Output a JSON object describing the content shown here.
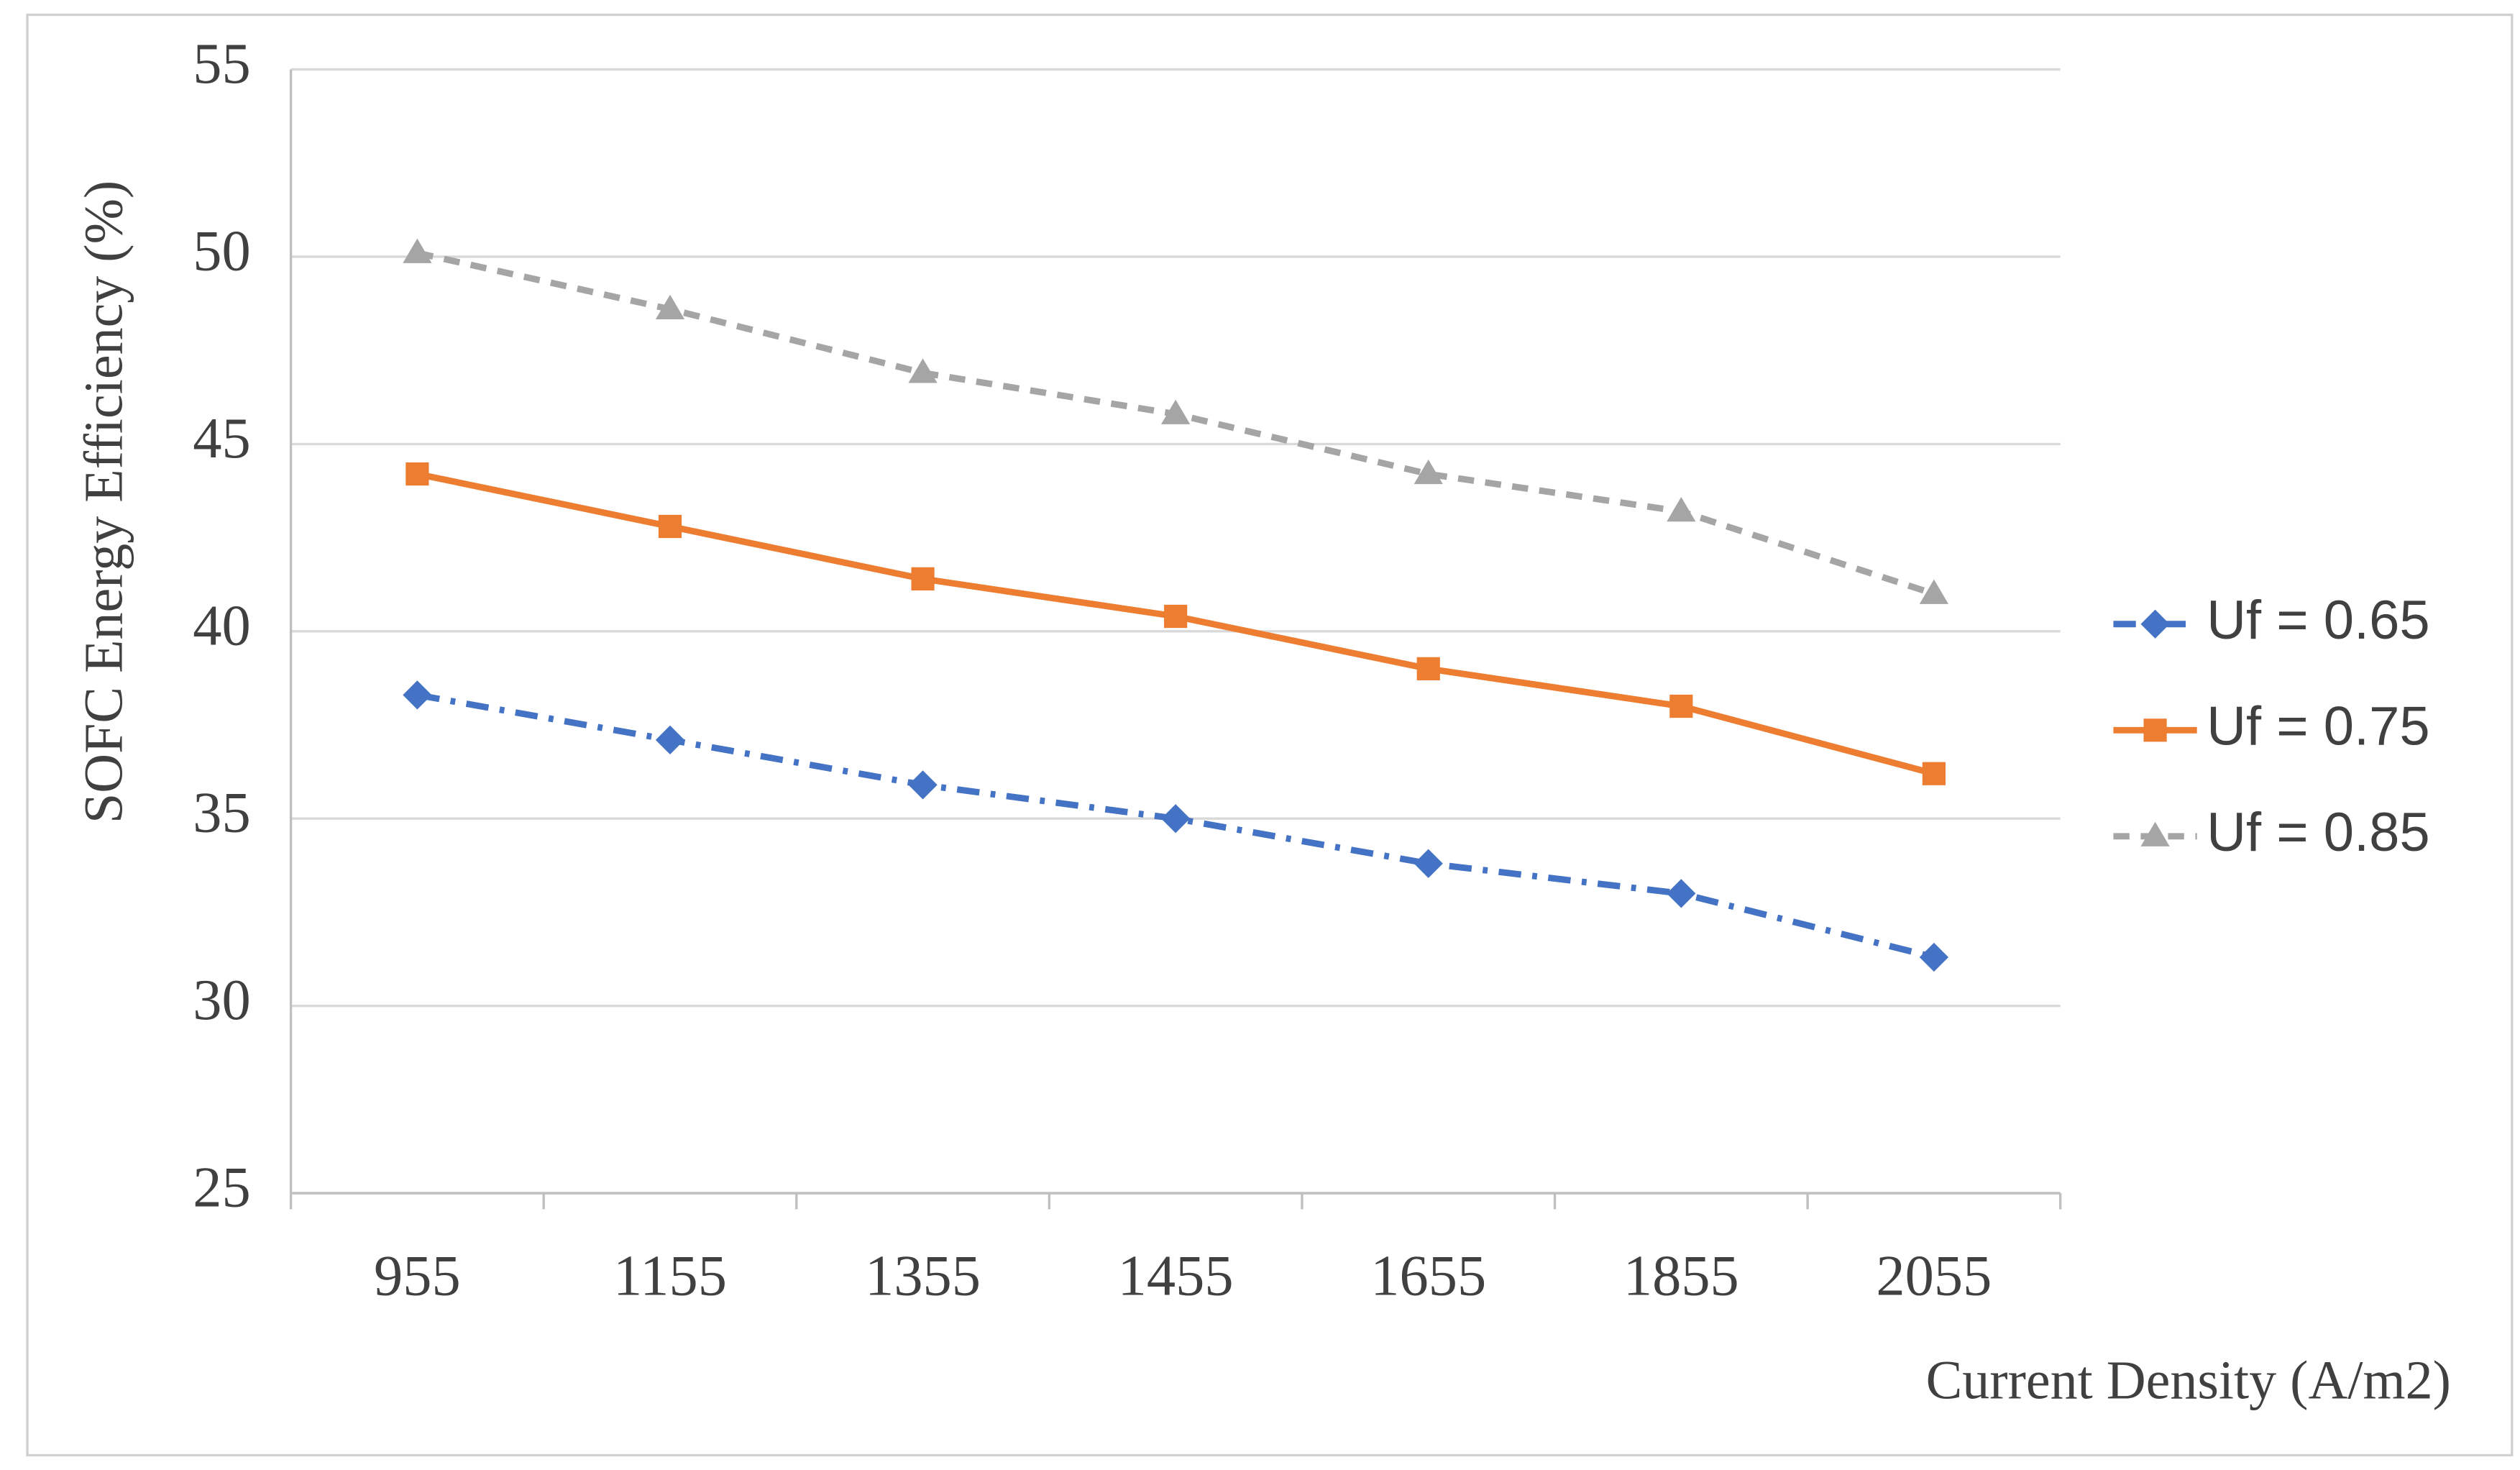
{
  "chart_data": {
    "type": "line",
    "y_label": "SOFC Energy Efficiency (%)",
    "x_label": "Current Density (A/m2)",
    "categories": [
      "955",
      "1155",
      "1355",
      "1455",
      "1655",
      "1855",
      "2055"
    ],
    "series": [
      {
        "name": "Uf = 0.65",
        "color": "#4472c4",
        "marker": "diamond",
        "dash": "dashdot",
        "values": [
          38.3,
          37.1,
          35.9,
          35.0,
          33.8,
          33.0,
          31.3
        ]
      },
      {
        "name": "Uf = 0.75",
        "color": "#ed7d31",
        "marker": "square",
        "dash": "solid",
        "values": [
          44.2,
          42.8,
          41.4,
          40.4,
          39.0,
          38.0,
          36.2
        ]
      },
      {
        "name": "Uf = 0.85",
        "color": "#a5a5a5",
        "marker": "triangle",
        "dash": "dashed",
        "values": [
          50.1,
          48.6,
          46.9,
          45.8,
          44.2,
          43.2,
          41.0
        ]
      }
    ],
    "ylim": [
      25,
      55
    ],
    "yticks": [
      25,
      30,
      35,
      40,
      45,
      50,
      55
    ],
    "grid": true,
    "legend": "right"
  }
}
